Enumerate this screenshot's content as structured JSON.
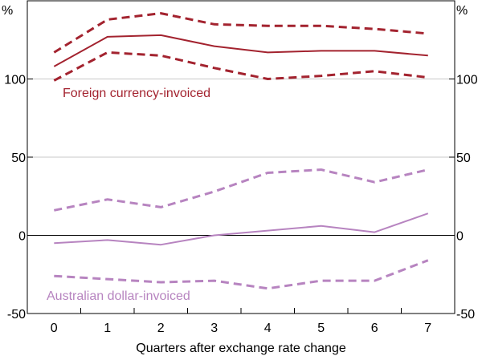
{
  "chart_data": {
    "type": "line",
    "title": "",
    "xlabel": "Quarters after exchange rate change",
    "ylabel": "%",
    "ylabel_right": "%",
    "x": [
      0,
      1,
      2,
      3,
      4,
      5,
      6,
      7
    ],
    "xlim": [
      -0.5,
      7.5
    ],
    "ylim": [
      -50,
      150
    ],
    "yticks": [
      -50,
      0,
      50,
      100
    ],
    "grid": "horizontal",
    "series": [
      {
        "name": "Foreign currency-invoiced",
        "band": "upper",
        "color": "#a3232f",
        "style": "dashed",
        "values": [
          117,
          138,
          142,
          135,
          134,
          134,
          132,
          129
        ]
      },
      {
        "name": "Foreign currency-invoiced",
        "band": "estimate",
        "color": "#a3232f",
        "style": "solid",
        "values": [
          108,
          127,
          128,
          121,
          117,
          118,
          118,
          115
        ]
      },
      {
        "name": "Foreign currency-invoiced",
        "band": "lower",
        "color": "#a3232f",
        "style": "dashed",
        "values": [
          99,
          117,
          115,
          107,
          100,
          102,
          105,
          101
        ]
      },
      {
        "name": "Australian dollar-invoiced",
        "band": "upper",
        "color": "#b784c0",
        "style": "dashed",
        "values": [
          16,
          23,
          18,
          28,
          40,
          42,
          34,
          42
        ]
      },
      {
        "name": "Australian dollar-invoiced",
        "band": "estimate",
        "color": "#b784c0",
        "style": "solid",
        "values": [
          -5,
          -3,
          -6,
          0,
          3,
          6,
          2,
          14
        ]
      },
      {
        "name": "Australian dollar-invoiced",
        "band": "lower",
        "color": "#b784c0",
        "style": "dashed",
        "values": [
          -26,
          -28,
          -30,
          -29,
          -34,
          -29,
          -29,
          -16
        ]
      }
    ],
    "annotations": [
      {
        "text": "Foreign currency-invoiced",
        "color": "#a3232f"
      },
      {
        "text": "Australian dollar-invoiced",
        "color": "#b784c0"
      }
    ]
  }
}
